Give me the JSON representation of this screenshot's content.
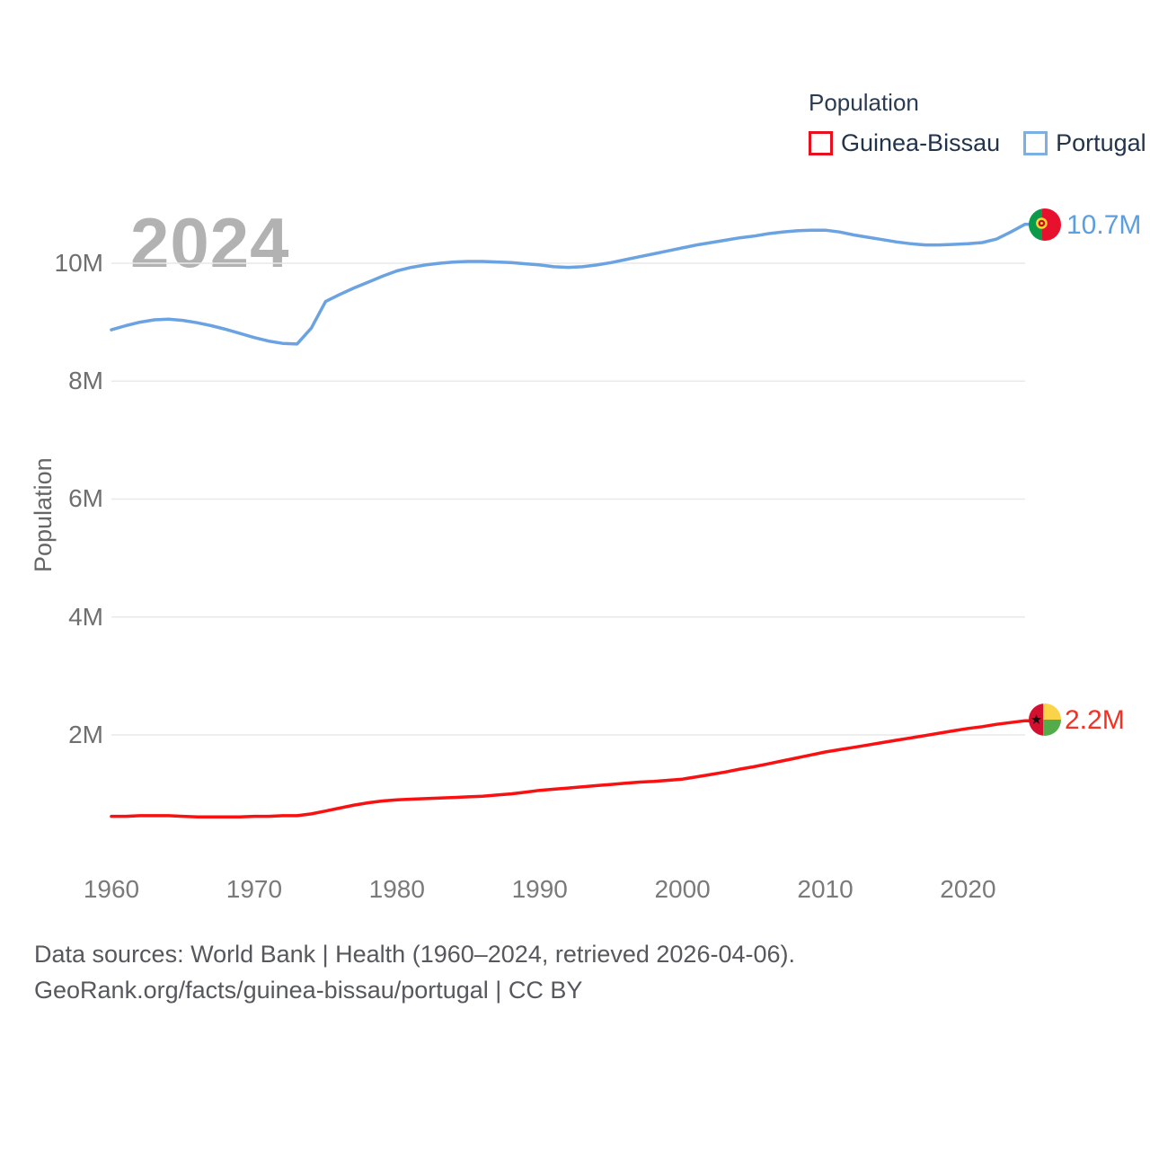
{
  "watermark": "2024",
  "legend": {
    "title": "Population",
    "items": [
      {
        "label": "Guinea-Bissau",
        "color": "#e8101e"
      },
      {
        "label": "Portugal",
        "color": "#7cb0e3"
      }
    ]
  },
  "end_labels": [
    {
      "series": "Portugal",
      "text": "10.7M",
      "color": "#5b9fe0",
      "flag": "portugal-flag"
    },
    {
      "series": "Guinea-Bissau",
      "text": "2.2M",
      "color": "#f63022",
      "flag": "guinea-bissau-flag"
    }
  ],
  "footer": {
    "line1": "Data sources: World Bank | Health (1960–2024, retrieved 2026-04-06).",
    "line2": "GeoRank.org/facts/guinea-bissau/portugal | CC BY"
  },
  "chart_data": {
    "type": "line",
    "title": "Population",
    "xlabel": "",
    "ylabel": "Population",
    "xlim": [
      1960,
      2024
    ],
    "ylim": [
      0,
      11000000
    ],
    "grid": "horizontal",
    "legend_position": "top-right",
    "units": "millions",
    "xticks": [
      {
        "value": 1960,
        "label": "1960"
      },
      {
        "value": 1970,
        "label": "1970"
      },
      {
        "value": 1980,
        "label": "1980"
      },
      {
        "value": 1990,
        "label": "1990"
      },
      {
        "value": 2000,
        "label": "2000"
      },
      {
        "value": 2010,
        "label": "2010"
      },
      {
        "value": 2020,
        "label": "2020"
      }
    ],
    "yticks": [
      {
        "value": 2,
        "label": "2M"
      },
      {
        "value": 4,
        "label": "4M"
      },
      {
        "value": 6,
        "label": "6M"
      },
      {
        "value": 8,
        "label": "8M"
      },
      {
        "value": 10,
        "label": "10M"
      }
    ],
    "x": [
      1960,
      1961,
      1962,
      1963,
      1964,
      1965,
      1966,
      1967,
      1968,
      1969,
      1970,
      1971,
      1972,
      1973,
      1974,
      1975,
      1976,
      1977,
      1978,
      1979,
      1980,
      1981,
      1982,
      1983,
      1984,
      1985,
      1986,
      1987,
      1988,
      1989,
      1990,
      1991,
      1992,
      1993,
      1994,
      1995,
      1996,
      1997,
      1998,
      1999,
      2000,
      2001,
      2002,
      2003,
      2004,
      2005,
      2006,
      2007,
      2008,
      2009,
      2010,
      2011,
      2012,
      2013,
      2014,
      2015,
      2016,
      2017,
      2018,
      2019,
      2020,
      2021,
      2022,
      2023,
      2024
    ],
    "series": [
      {
        "name": "Guinea-Bissau",
        "color": "#fa1010",
        "end_label": "2.2M",
        "values": [
          0.62,
          0.62,
          0.63,
          0.63,
          0.63,
          0.62,
          0.61,
          0.61,
          0.61,
          0.61,
          0.62,
          0.62,
          0.63,
          0.63,
          0.66,
          0.71,
          0.76,
          0.81,
          0.85,
          0.88,
          0.9,
          0.91,
          0.92,
          0.93,
          0.94,
          0.95,
          0.96,
          0.98,
          1.0,
          1.03,
          1.06,
          1.08,
          1.1,
          1.12,
          1.14,
          1.16,
          1.18,
          1.2,
          1.21,
          1.23,
          1.25,
          1.29,
          1.33,
          1.37,
          1.42,
          1.46,
          1.51,
          1.56,
          1.61,
          1.66,
          1.71,
          1.75,
          1.79,
          1.83,
          1.87,
          1.91,
          1.95,
          1.99,
          2.03,
          2.07,
          2.11,
          2.14,
          2.18,
          2.21,
          2.24
        ]
      },
      {
        "name": "Portugal",
        "color": "#6aa2e2",
        "end_label": "10.7M",
        "values": [
          8.87,
          8.94,
          9.0,
          9.04,
          9.05,
          9.03,
          8.99,
          8.94,
          8.88,
          8.81,
          8.74,
          8.68,
          8.64,
          8.63,
          8.9,
          9.35,
          9.47,
          9.58,
          9.68,
          9.78,
          9.87,
          9.93,
          9.97,
          10.0,
          10.02,
          10.03,
          10.03,
          10.02,
          10.01,
          9.99,
          9.97,
          9.94,
          9.93,
          9.94,
          9.97,
          10.01,
          10.06,
          10.11,
          10.16,
          10.21,
          10.26,
          10.31,
          10.35,
          10.39,
          10.43,
          10.46,
          10.5,
          10.53,
          10.55,
          10.56,
          10.56,
          10.53,
          10.48,
          10.44,
          10.4,
          10.36,
          10.33,
          10.31,
          10.31,
          10.32,
          10.33,
          10.35,
          10.41,
          10.53,
          10.66
        ]
      }
    ]
  }
}
